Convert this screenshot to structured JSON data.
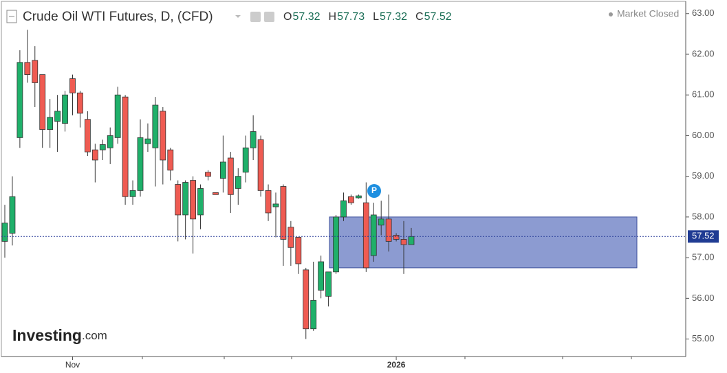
{
  "chart_data": {
    "type": "candlestick",
    "title": "Crude Oil WTI Futures, D, (CFD)",
    "ohlc_header": {
      "labels": [
        "O",
        "H",
        "L",
        "C"
      ],
      "values": [
        57.32,
        57.73,
        57.32,
        57.52
      ]
    },
    "status": "Market Closed",
    "brand": {
      "name": "Investing",
      "suffix": ".com"
    },
    "marker_label": "P",
    "categories": [
      null,
      null,
      null,
      null,
      null,
      null,
      null,
      null,
      null,
      "Nov",
      null,
      null,
      null,
      null,
      null,
      null,
      null,
      null,
      null,
      null,
      null,
      null,
      null,
      null,
      null,
      null,
      null,
      null,
      null,
      null,
      null,
      null,
      null,
      null,
      null,
      null,
      null,
      null,
      null,
      null,
      null,
      null,
      null,
      null,
      null,
      null,
      null,
      null,
      null,
      null,
      null,
      null,
      "2026",
      null,
      null
    ],
    "open": [
      57.4,
      57.6,
      59.95,
      61.8,
      61.85,
      61.5,
      60.15,
      60.35,
      60.3,
      61.4,
      61.05,
      60.4,
      59.65,
      59.65,
      59.7,
      59.95,
      60.95,
      58.5,
      58.65,
      59.8,
      59.7,
      60.6,
      59.65,
      58.8,
      58.05,
      58.9,
      58.05,
      59.1,
      58.6,
      58.95,
      59.45,
      58.7,
      59.1,
      59.7,
      59.9,
      58.65,
      58.25,
      58.75,
      57.75,
      57.5,
      56.7,
      55.25,
      56.2,
      56.05,
      56.65,
      58.0,
      58.5,
      58.47,
      58.35,
      57.05,
      57.8,
      57.95,
      57.55,
      57.45,
      57.32
    ],
    "high": [
      58.3,
      59.0,
      62.1,
      62.6,
      62.2,
      61.5,
      60.9,
      61.0,
      61.1,
      61.5,
      61.1,
      60.6,
      59.8,
      59.9,
      60.2,
      61.2,
      61.0,
      58.9,
      60.4,
      60.3,
      60.95,
      60.7,
      59.7,
      58.9,
      58.9,
      59.0,
      58.8,
      59.15,
      58.6,
      60.0,
      59.6,
      59.2,
      60.0,
      60.5,
      60.0,
      58.8,
      58.6,
      58.8,
      57.9,
      57.5,
      56.75,
      56.9,
      57.05,
      56.65,
      58.05,
      58.6,
      58.55,
      58.55,
      58.85,
      58.35,
      58.4,
      58.55,
      57.6,
      57.9,
      57.73
    ],
    "low": [
      57.0,
      57.3,
      59.7,
      61.3,
      60.7,
      59.7,
      59.7,
      59.6,
      60.1,
      60.5,
      60.2,
      59.5,
      58.85,
      59.4,
      59.3,
      59.8,
      58.3,
      58.3,
      58.5,
      59.6,
      58.75,
      58.8,
      58.9,
      57.4,
      57.45,
      57.1,
      57.7,
      58.9,
      58.55,
      58.6,
      58.1,
      58.3,
      58.85,
      59.4,
      58.5,
      57.9,
      57.5,
      56.8,
      56.8,
      56.6,
      55.0,
      55.2,
      56.0,
      55.8,
      56.6,
      57.9,
      58.3,
      58.45,
      56.65,
      56.9,
      57.55,
      57.15,
      57.4,
      56.6,
      57.32
    ],
    "close": [
      57.85,
      58.5,
      61.8,
      61.5,
      61.3,
      60.15,
      60.45,
      60.6,
      61.0,
      61.05,
      60.55,
      59.6,
      59.4,
      59.78,
      60.0,
      61.0,
      58.5,
      58.65,
      59.95,
      59.92,
      60.75,
      59.4,
      59.15,
      58.05,
      58.85,
      57.95,
      58.7,
      59.0,
      58.55,
      59.35,
      58.55,
      59.0,
      59.7,
      60.1,
      58.65,
      58.1,
      58.32,
      57.45,
      57.25,
      56.85,
      55.25,
      55.95,
      56.9,
      56.65,
      58.0,
      58.4,
      58.35,
      58.52,
      56.75,
      58.05,
      57.95,
      57.4,
      57.45,
      57.32,
      57.52
    ],
    "up_color": "#1fb06a",
    "down_color": "#ef5b52",
    "zone": {
      "high": 58.0,
      "low": 56.75,
      "color": "#6f82c6"
    },
    "last_price": 57.52,
    "ylim": [
      54.57,
      63.3
    ],
    "yticks": [
      {
        "value": 55,
        "label": "55.00"
      },
      {
        "value": 56,
        "label": "56.00"
      },
      {
        "value": 57,
        "label": "57.00"
      },
      {
        "value": 58,
        "label": "58.00"
      },
      {
        "value": 59,
        "label": "59.00"
      },
      {
        "value": 60,
        "label": "60.00"
      },
      {
        "value": 61,
        "label": "61.00"
      },
      {
        "value": 62,
        "label": "62.00"
      },
      {
        "value": 63,
        "label": "63.00"
      }
    ]
  }
}
